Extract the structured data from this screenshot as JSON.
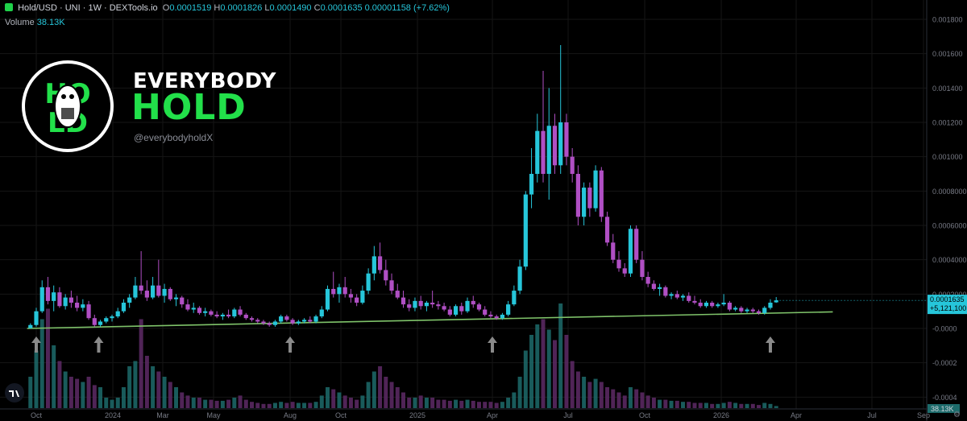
{
  "header": {
    "symbol": "Hold/USD · UNI · 1W · DEXTools.io",
    "o_label": "O",
    "o": "0.0001519",
    "h_label": "H",
    "h": "0.0001826",
    "l_label": "L",
    "l": "0.0001490",
    "c_label": "C",
    "c": "0.0001635",
    "change": "0.00001158 (+7.62%)"
  },
  "volume": {
    "label": "Volume",
    "value": "38.13K"
  },
  "brand": {
    "line1": "EVERYBODY",
    "line2": "HOLD",
    "handle": "@everybodyholdX",
    "logo_text": "HOLD"
  },
  "colors": {
    "bg": "#000000",
    "up": "#26c6da",
    "down": "#b04fc4",
    "up_vol": "#1d6b6b",
    "down_vol": "#5e2a66",
    "support": "#7fc36a",
    "arrow": "#8a8a8a",
    "grid": "#161616"
  },
  "chart_data": {
    "type": "candlestick",
    "y_axis": {
      "ticks": [
        "0.001800",
        "0.001600",
        "0.001400",
        "0.001200",
        "0.001000",
        "0.0008000",
        "0.0006000",
        "0.0004000",
        "0.0002000",
        "-0.0000",
        "-0.0002",
        "-0.0004"
      ],
      "values": [
        0.0018,
        0.0016,
        0.0014,
        0.0012,
        0.001,
        0.0008,
        0.0006,
        0.0004,
        0.0002,
        0,
        -0.0002,
        -0.0004
      ],
      "ylim": [
        -0.00046,
        0.00188
      ]
    },
    "x_axis": {
      "ticks": [
        "Oct",
        "2024",
        "Mar",
        "May",
        "Aug",
        "Oct",
        "2025",
        "Apr",
        "Jul",
        "Oct",
        "2026",
        "Apr",
        "Jul",
        "Sep"
      ],
      "tick_dates": [
        "2023-10-01",
        "2024-01-01",
        "2024-03-01",
        "2024-05-01",
        "2024-08-01",
        "2024-10-01",
        "2025-01-01",
        "2025-04-01",
        "2025-07-01",
        "2025-10-01",
        "2026-01-01",
        "2026-04-01",
        "2026-07-01",
        "2026-09-01"
      ]
    },
    "last_price": {
      "label": "0.0001635",
      "value": 0.0001635
    },
    "last_volume_label": "+5,121,100",
    "volume_axis_label": "38.13K",
    "support_line": {
      "from": [
        "2023-09-20",
        0.0
      ],
      "to": [
        "2026-05-15",
        9.65e-05
      ]
    },
    "arrows": [
      "2023-10-01",
      "2023-12-15",
      "2024-08-01",
      "2025-04-01",
      "2026-03-01"
    ],
    "candles": [
      [
        "2023-09-24",
        2e-06,
        3e-05,
        0.0,
        2e-05,
        0.3
      ],
      [
        "2023-10-01",
        2e-05,
        0.00012,
        1e-05,
        0.0001,
        0.55
      ],
      [
        "2023-10-08",
        0.0001,
        0.00028,
        9e-05,
        0.00024,
        0.85
      ],
      [
        "2023-10-15",
        0.00024,
        0.0003,
        0.00014,
        0.00016,
        0.95
      ],
      [
        "2023-10-22",
        0.00016,
        0.00025,
        0.0001,
        0.00021,
        0.6
      ],
      [
        "2023-10-29",
        0.00021,
        0.00024,
        0.00012,
        0.00013,
        0.45
      ],
      [
        "2023-11-05",
        0.00013,
        0.0002,
        0.00011,
        0.00018,
        0.35
      ],
      [
        "2023-11-12",
        0.00018,
        0.00022,
        0.00012,
        0.00015,
        0.3
      ],
      [
        "2023-11-19",
        0.00015,
        0.00019,
        0.0001,
        0.00012,
        0.28
      ],
      [
        "2023-11-26",
        0.00012,
        0.00017,
        0.0001,
        0.00014,
        0.25
      ],
      [
        "2023-12-03",
        0.00014,
        0.00016,
        5e-05,
        6e-05,
        0.3
      ],
      [
        "2023-12-10",
        6e-05,
        8e-05,
        1e-05,
        2e-05,
        0.22
      ],
      [
        "2023-12-17",
        2e-05,
        5e-05,
        1e-05,
        4e-05,
        0.2
      ],
      [
        "2023-12-24",
        4e-05,
        7e-05,
        3e-05,
        6e-05,
        0.1
      ],
      [
        "2023-12-31",
        6e-05,
        8e-05,
        4e-05,
        7e-05,
        0.08
      ],
      [
        "2024-01-07",
        7e-05,
        0.00012,
        6e-05,
        0.0001,
        0.1
      ],
      [
        "2024-01-14",
        0.0001,
        0.00017,
        9e-05,
        0.00015,
        0.2
      ],
      [
        "2024-01-21",
        0.00015,
        0.0002,
        0.00012,
        0.00018,
        0.4
      ],
      [
        "2024-01-28",
        0.00018,
        0.0003,
        0.00017,
        0.00025,
        0.45
      ],
      [
        "2024-02-04",
        0.00025,
        0.00045,
        0.0002,
        0.00022,
        0.85
      ],
      [
        "2024-02-11",
        0.00022,
        0.00028,
        0.00016,
        0.00018,
        0.5
      ],
      [
        "2024-02-18",
        0.00018,
        0.0003,
        0.00017,
        0.00025,
        0.4
      ],
      [
        "2024-02-25",
        0.00025,
        0.0004,
        0.00018,
        0.00019,
        0.35
      ],
      [
        "2024-03-03",
        0.00019,
        0.00026,
        0.00015,
        0.00023,
        0.3
      ],
      [
        "2024-03-10",
        0.00023,
        0.00024,
        0.00016,
        0.00017,
        0.25
      ],
      [
        "2024-03-17",
        0.00017,
        0.0002,
        0.00013,
        0.00018,
        0.2
      ],
      [
        "2024-03-24",
        0.00018,
        0.00019,
        0.00012,
        0.00014,
        0.15
      ],
      [
        "2024-03-31",
        0.00014,
        0.00017,
        0.0001,
        0.00011,
        0.12
      ],
      [
        "2024-04-07",
        0.00011,
        0.00015,
        9e-05,
        0.00012,
        0.1
      ],
      [
        "2024-04-14",
        0.00012,
        0.00013,
        8e-05,
        9e-05,
        0.1
      ],
      [
        "2024-04-21",
        9e-05,
        0.00012,
        7e-05,
        0.0001,
        0.08
      ],
      [
        "2024-04-28",
        0.0001,
        0.00011,
        7e-05,
        8e-05,
        0.08
      ],
      [
        "2024-05-05",
        8e-05,
        0.0001,
        6e-05,
        7e-05,
        0.07
      ],
      [
        "2024-05-12",
        7e-05,
        9e-05,
        5e-05,
        8e-05,
        0.07
      ],
      [
        "2024-05-19",
        8e-05,
        0.00011,
        6e-05,
        7e-05,
        0.08
      ],
      [
        "2024-05-26",
        7e-05,
        0.00012,
        6e-05,
        0.00011,
        0.1
      ],
      [
        "2024-06-02",
        0.00011,
        0.00013,
        7e-05,
        8e-05,
        0.12
      ],
      [
        "2024-06-09",
        8e-05,
        9e-05,
        5e-05,
        6e-05,
        0.08
      ],
      [
        "2024-06-16",
        6e-05,
        7e-05,
        4e-05,
        5e-05,
        0.06
      ],
      [
        "2024-06-23",
        5e-05,
        6e-05,
        3e-05,
        4e-05,
        0.05
      ],
      [
        "2024-06-30",
        4e-05,
        5e-05,
        2e-05,
        3e-05,
        0.04
      ],
      [
        "2024-07-07",
        3e-05,
        4e-05,
        1e-05,
        2e-05,
        0.04
      ],
      [
        "2024-07-14",
        2e-05,
        5e-05,
        1e-05,
        4e-05,
        0.05
      ],
      [
        "2024-07-21",
        4e-05,
        8e-05,
        3e-05,
        7e-05,
        0.06
      ],
      [
        "2024-07-28",
        7e-05,
        8e-05,
        4e-05,
        5e-05,
        0.05
      ],
      [
        "2024-08-04",
        5e-05,
        6e-05,
        2e-05,
        3e-05,
        0.06
      ],
      [
        "2024-08-11",
        3e-05,
        5e-05,
        2e-05,
        4e-05,
        0.05
      ],
      [
        "2024-08-18",
        4e-05,
        6e-05,
        3e-05,
        5e-05,
        0.05
      ],
      [
        "2024-08-25",
        5e-05,
        7e-05,
        3e-05,
        4e-05,
        0.05
      ],
      [
        "2024-09-01",
        4e-05,
        8e-05,
        3e-05,
        7e-05,
        0.06
      ],
      [
        "2024-09-08",
        7e-05,
        0.00013,
        6e-05,
        0.00011,
        0.12
      ],
      [
        "2024-09-15",
        0.00011,
        0.00025,
        0.0001,
        0.00023,
        0.2
      ],
      [
        "2024-09-22",
        0.00023,
        0.00033,
        0.00018,
        0.0002,
        0.18
      ],
      [
        "2024-09-29",
        0.0002,
        0.00026,
        0.00015,
        0.00024,
        0.15
      ],
      [
        "2024-10-06",
        0.00024,
        0.0003,
        0.00018,
        0.0002,
        0.12
      ],
      [
        "2024-10-13",
        0.0002,
        0.00023,
        0.00015,
        0.00018,
        0.1
      ],
      [
        "2024-10-20",
        0.00018,
        0.0002,
        0.00013,
        0.00015,
        0.08
      ],
      [
        "2024-10-27",
        0.00015,
        0.00025,
        0.00014,
        0.00022,
        0.12
      ],
      [
        "2024-11-03",
        0.00022,
        0.00035,
        0.0002,
        0.00032,
        0.25
      ],
      [
        "2024-11-10",
        0.00032,
        0.00048,
        0.00028,
        0.00042,
        0.35
      ],
      [
        "2024-11-17",
        0.00042,
        0.0005,
        0.00032,
        0.00034,
        0.4
      ],
      [
        "2024-11-24",
        0.00034,
        0.0004,
        0.00025,
        0.00028,
        0.3
      ],
      [
        "2024-12-01",
        0.00028,
        0.00032,
        0.0002,
        0.00022,
        0.25
      ],
      [
        "2024-12-08",
        0.00022,
        0.00026,
        0.00017,
        0.00018,
        0.2
      ],
      [
        "2024-12-15",
        0.00018,
        0.00022,
        0.00012,
        0.00014,
        0.15
      ],
      [
        "2024-12-22",
        0.00014,
        0.00017,
        0.0001,
        0.00012,
        0.1
      ],
      [
        "2024-12-29",
        0.00012,
        0.00018,
        0.0001,
        0.00016,
        0.1
      ],
      [
        "2025-01-05",
        0.00016,
        0.00019,
        0.00011,
        0.00013,
        0.12
      ],
      [
        "2025-01-12",
        0.00013,
        0.00016,
        0.0001,
        0.00015,
        0.1
      ],
      [
        "2025-01-19",
        0.00015,
        0.00022,
        0.00012,
        0.00014,
        0.1
      ],
      [
        "2025-01-26",
        0.00014,
        0.00016,
        0.00011,
        0.00013,
        0.08
      ],
      [
        "2025-02-02",
        0.00013,
        0.00015,
        0.0001,
        0.00011,
        0.08
      ],
      [
        "2025-02-09",
        0.00011,
        0.00013,
        7e-05,
        8e-05,
        0.07
      ],
      [
        "2025-02-16",
        8e-05,
        0.00014,
        7e-05,
        0.00013,
        0.08
      ],
      [
        "2025-02-23",
        0.00013,
        0.00015,
        8e-05,
        0.0001,
        0.07
      ],
      [
        "2025-03-02",
        0.0001,
        0.00018,
        9e-05,
        0.00016,
        0.08
      ],
      [
        "2025-03-09",
        0.00016,
        0.00019,
        0.00012,
        0.00014,
        0.07
      ],
      [
        "2025-03-16",
        0.00014,
        0.00015,
        0.0001,
        0.00011,
        0.06
      ],
      [
        "2025-03-23",
        0.00011,
        0.00013,
        7e-05,
        8e-05,
        0.06
      ],
      [
        "2025-03-30",
        8e-05,
        0.0001,
        6e-05,
        7e-05,
        0.06
      ],
      [
        "2025-04-06",
        7e-05,
        8e-05,
        5e-05,
        6e-05,
        0.05
      ],
      [
        "2025-04-13",
        6e-05,
        9e-05,
        5e-05,
        8e-05,
        0.06
      ],
      [
        "2025-04-20",
        8e-05,
        0.00016,
        7e-05,
        0.00014,
        0.1
      ],
      [
        "2025-04-27",
        0.00014,
        0.00025,
        0.00013,
        0.00022,
        0.15
      ],
      [
        "2025-05-04",
        0.00022,
        0.0004,
        0.0002,
        0.00036,
        0.3
      ],
      [
        "2025-05-11",
        0.00036,
        0.0008,
        0.00034,
        0.00078,
        0.55
      ],
      [
        "2025-05-18",
        0.00078,
        0.00105,
        0.0007,
        0.0009,
        0.7
      ],
      [
        "2025-05-25",
        0.0009,
        0.00125,
        0.00085,
        0.00115,
        0.8
      ],
      [
        "2025-06-01",
        0.00115,
        0.0015,
        0.00085,
        0.0009,
        0.85
      ],
      [
        "2025-06-08",
        0.0009,
        0.0014,
        0.00075,
        0.00118,
        0.75
      ],
      [
        "2025-06-15",
        0.00118,
        0.00125,
        0.0009,
        0.00095,
        0.65
      ],
      [
        "2025-06-22",
        0.00095,
        0.00165,
        0.0009,
        0.0012,
        1.0
      ],
      [
        "2025-06-29",
        0.0012,
        0.00125,
        0.00095,
        0.001,
        0.7
      ],
      [
        "2025-07-06",
        0.001,
        0.00105,
        0.00085,
        0.0009,
        0.45
      ],
      [
        "2025-07-13",
        0.0009,
        0.00095,
        0.0006,
        0.00065,
        0.35
      ],
      [
        "2025-07-20",
        0.00065,
        0.00085,
        0.0006,
        0.00082,
        0.3
      ],
      [
        "2025-07-27",
        0.00082,
        0.00085,
        0.00065,
        0.0007,
        0.25
      ],
      [
        "2025-08-03",
        0.0007,
        0.00095,
        0.00068,
        0.00092,
        0.28
      ],
      [
        "2025-08-10",
        0.00092,
        0.00094,
        0.00062,
        0.00065,
        0.25
      ],
      [
        "2025-08-17",
        0.00065,
        0.00068,
        0.00048,
        0.0005,
        0.2
      ],
      [
        "2025-08-24",
        0.0005,
        0.00055,
        0.00038,
        0.0004,
        0.18
      ],
      [
        "2025-08-31",
        0.0004,
        0.00045,
        0.00033,
        0.00035,
        0.15
      ],
      [
        "2025-09-07",
        0.00035,
        0.00038,
        0.0003,
        0.00032,
        0.12
      ],
      [
        "2025-09-14",
        0.00032,
        0.0006,
        0.0003,
        0.00058,
        0.2
      ],
      [
        "2025-09-21",
        0.00058,
        0.0006,
        0.00038,
        0.0004,
        0.18
      ],
      [
        "2025-09-28",
        0.0004,
        0.00045,
        0.00028,
        0.0003,
        0.15
      ],
      [
        "2025-10-05",
        0.0003,
        0.00033,
        0.00024,
        0.00026,
        0.12
      ],
      [
        "2025-10-12",
        0.00026,
        0.00028,
        0.00022,
        0.00023,
        0.1
      ],
      [
        "2025-10-19",
        0.00023,
        0.00026,
        0.00019,
        0.00024,
        0.08
      ],
      [
        "2025-10-26",
        0.00024,
        0.00025,
        0.00018,
        0.00019,
        0.08
      ],
      [
        "2025-11-02",
        0.00019,
        0.00021,
        0.00017,
        0.0002,
        0.07
      ],
      [
        "2025-11-09",
        0.0002,
        0.00022,
        0.00017,
        0.00018,
        0.07
      ],
      [
        "2025-11-16",
        0.00018,
        0.0002,
        0.00016,
        0.00019,
        0.06
      ],
      [
        "2025-11-23",
        0.00019,
        0.00021,
        0.00015,
        0.00016,
        0.06
      ],
      [
        "2025-11-30",
        0.00016,
        0.00019,
        0.00014,
        0.00015,
        0.05
      ],
      [
        "2025-12-07",
        0.00015,
        0.00017,
        0.00012,
        0.00013,
        0.05
      ],
      [
        "2025-12-14",
        0.00013,
        0.00016,
        0.00012,
        0.00015,
        0.05
      ],
      [
        "2025-12-21",
        0.00015,
        0.00016,
        0.00012,
        0.00013,
        0.04
      ],
      [
        "2025-12-28",
        0.00013,
        0.00015,
        0.00012,
        0.00014,
        0.04
      ],
      [
        "2026-01-04",
        0.00014,
        0.0002,
        0.00013,
        0.00015,
        0.05
      ],
      [
        "2026-01-11",
        0.00015,
        0.00016,
        0.0001,
        0.00011,
        0.06
      ],
      [
        "2026-01-18",
        0.00011,
        0.00013,
        0.0001,
        0.00012,
        0.05
      ],
      [
        "2026-01-25",
        0.00012,
        0.00013,
        9e-05,
        0.0001,
        0.04
      ],
      [
        "2026-02-01",
        0.0001,
        0.00012,
        9e-05,
        0.00011,
        0.04
      ],
      [
        "2026-02-08",
        0.00011,
        0.00012,
        9e-05,
        0.0001,
        0.04
      ],
      [
        "2026-02-15",
        0.0001,
        0.00011,
        8e-05,
        9e-05,
        0.03
      ],
      [
        "2026-02-22",
        9e-05,
        0.00013,
        8e-05,
        0.00012,
        0.05
      ],
      [
        "2026-03-01",
        0.00012,
        0.00017,
        0.00011,
        0.00015,
        0.04
      ],
      [
        "2026-03-08",
        0.0001519,
        0.0001826,
        0.000149,
        0.0001635,
        0.02
      ]
    ]
  }
}
